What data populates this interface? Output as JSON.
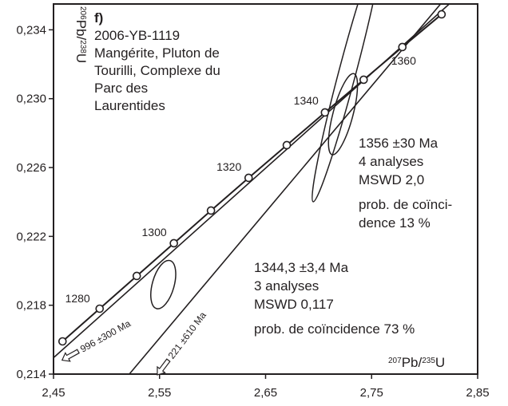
{
  "chart_data": {
    "type": "scatter",
    "panel_label": "f)",
    "sample_lines": [
      "2006-YB-1119",
      "Mangérite, Pluton de",
      "Tourilli, Complexe du",
      "Parc des",
      "Laurentides"
    ],
    "xlabel": {
      "pre": "207",
      "base": "Pb/",
      "pre2": "235",
      "base2": "U"
    },
    "ylabel": {
      "pre": "206",
      "base": "Pb/",
      "pre2": "238",
      "base2": "U"
    },
    "xlim": [
      2.45,
      2.85
    ],
    "ylim": [
      0.214,
      0.2355
    ],
    "x_ticks": [
      {
        "value": 2.45,
        "label": "2,45"
      },
      {
        "value": 2.55,
        "label": "2,55"
      },
      {
        "value": 2.65,
        "label": "2,65"
      },
      {
        "value": 2.75,
        "label": "2,75"
      },
      {
        "value": 2.85,
        "label": "2,85"
      }
    ],
    "y_ticks": [
      {
        "value": 0.214,
        "label": "0,214"
      },
      {
        "value": 0.218,
        "label": "0,218"
      },
      {
        "value": 0.222,
        "label": "0,222"
      },
      {
        "value": 0.226,
        "label": "0,226"
      },
      {
        "value": 0.23,
        "label": "0,230"
      },
      {
        "value": 0.234,
        "label": "0,234"
      }
    ],
    "concordia": {
      "points": [
        {
          "age": 1270,
          "x": 2.4585,
          "y": 0.2159
        },
        {
          "age": 1280,
          "x": 2.4935,
          "y": 0.2178
        },
        {
          "age": 1290,
          "x": 2.5285,
          "y": 0.2197
        },
        {
          "age": 1300,
          "x": 2.5635,
          "y": 0.2216
        },
        {
          "age": 1310,
          "x": 2.5985,
          "y": 0.2235
        },
        {
          "age": 1320,
          "x": 2.634,
          "y": 0.2254
        },
        {
          "age": 1330,
          "x": 2.67,
          "y": 0.2273
        },
        {
          "age": 1340,
          "x": 2.706,
          "y": 0.2292
        },
        {
          "age": 1350,
          "x": 2.7425,
          "y": 0.2311
        },
        {
          "age": 1360,
          "x": 2.779,
          "y": 0.233
        },
        {
          "age": 1370,
          "x": 2.816,
          "y": 0.2349
        }
      ],
      "age_labels": [
        {
          "age": 1280,
          "label": "1280"
        },
        {
          "age": 1300,
          "label": "1300"
        },
        {
          "age": 1320,
          "label": "1320"
        },
        {
          "age": 1340,
          "label": "1340"
        },
        {
          "age": 1360,
          "label": "1360"
        }
      ]
    },
    "discordia": [
      {
        "name": "996 ±300 Ma",
        "start": [
          2.45,
          0.21495
        ],
        "end": [
          2.8305,
          0.2359
        ]
      },
      {
        "name": "221 ±610 Ma",
        "start": [
          2.5215,
          0.214
        ],
        "end": [
          2.8205,
          0.2359
        ]
      }
    ],
    "ellipses": [
      {
        "cx": 2.5535,
        "cy": 0.2192,
        "rx": 0.0065,
        "ry": 0.00115,
        "angle": 0.2195
      },
      {
        "cx": 2.723,
        "cy": 0.2291,
        "rx": 0.0105,
        "ry": 0.00105,
        "angle": 0.23
      },
      {
        "cx": 2.727,
        "cy": 0.2315,
        "rx": 0.033,
        "ry": 0.0009,
        "angle": 0.233
      }
    ],
    "annotations": [
      {
        "lines": [
          "1356 ±30 Ma",
          "4 analyses",
          "MSWD 2,0",
          "prob. de coïnci-",
          "dence 13 %"
        ]
      },
      {
        "lines": [
          "1344,3 ±3,4 Ma",
          "3 analyses",
          "MSWD 0,117",
          "prob. de coïncidence 73 %"
        ]
      }
    ]
  }
}
